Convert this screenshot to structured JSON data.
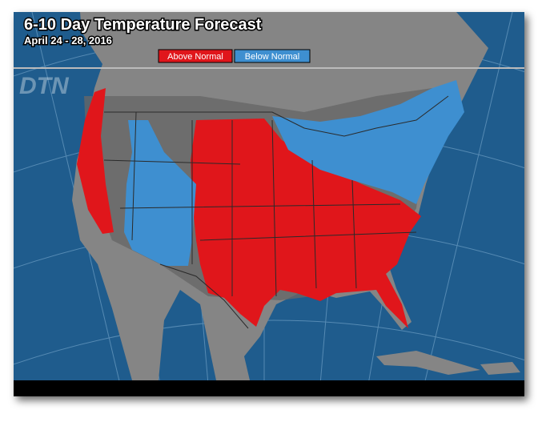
{
  "header": {
    "title": "6-10 Day Temperature Forecast",
    "subtitle": "April 24 - 28, 2016"
  },
  "legend": [
    {
      "label": "Above Normal",
      "color": "#e0161b"
    },
    {
      "label": "Below Normal",
      "color": "#3e8fd0"
    }
  ],
  "watermark": "DTN"
}
